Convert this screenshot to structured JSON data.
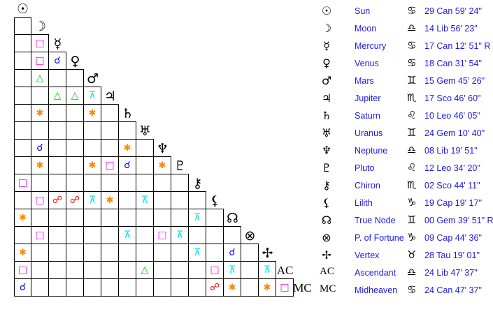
{
  "bodies": [
    {
      "name": "Sun",
      "glyph": "☉",
      "icon": "sun-icon",
      "sign": "♋",
      "sign_icon": "cancer-icon",
      "position": "29 Can 59' 24\""
    },
    {
      "name": "Moon",
      "glyph": "☽",
      "icon": "moon-icon",
      "sign": "♎",
      "sign_icon": "libra-icon",
      "position": "14 Lib 56' 23\""
    },
    {
      "name": "Mercury",
      "glyph": "☿",
      "icon": "mercury-icon",
      "sign": "♋",
      "sign_icon": "cancer-icon",
      "position": "17 Can 12' 51\" R"
    },
    {
      "name": "Venus",
      "glyph": "♀",
      "icon": "venus-icon",
      "sign": "♋",
      "sign_icon": "cancer-icon",
      "position": "18 Can 31' 54\""
    },
    {
      "name": "Mars",
      "glyph": "♂",
      "icon": "mars-icon",
      "sign": "♊",
      "sign_icon": "gemini-icon",
      "position": "15 Gem 45' 26\""
    },
    {
      "name": "Jupiter",
      "glyph": "♃",
      "icon": "jupiter-icon",
      "sign": "♏",
      "sign_icon": "scorpio-icon",
      "position": "17 Sco 46' 60\""
    },
    {
      "name": "Saturn",
      "glyph": "♄",
      "icon": "saturn-icon",
      "sign": "♌",
      "sign_icon": "leo-icon",
      "position": "10 Leo 46' 05\""
    },
    {
      "name": "Uranus",
      "glyph": "♅",
      "icon": "uranus-icon",
      "sign": "♊",
      "sign_icon": "gemini-icon",
      "position": "24 Gem 10' 40\""
    },
    {
      "name": "Neptune",
      "glyph": "♆",
      "icon": "neptune-icon",
      "sign": "♎",
      "sign_icon": "libra-icon",
      "position": "08 Lib 19' 51\""
    },
    {
      "name": "Pluto",
      "glyph": "♇",
      "icon": "pluto-icon",
      "sign": "♌",
      "sign_icon": "leo-icon",
      "position": "12 Leo 34' 20\""
    },
    {
      "name": "Chiron",
      "glyph": "⚷",
      "icon": "chiron-icon",
      "sign": "♏",
      "sign_icon": "scorpio-icon",
      "position": "02 Sco 44' 11\""
    },
    {
      "name": "Lilith",
      "glyph": "⚸",
      "icon": "lilith-icon",
      "sign": "♑",
      "sign_icon": "capricorn-icon",
      "position": "19 Cap 19' 17\""
    },
    {
      "name": "True Node",
      "glyph": "☊",
      "icon": "north-node-icon",
      "sign": "♊",
      "sign_icon": "gemini-icon",
      "position": "00 Gem 39' 51\" R"
    },
    {
      "name": "P. of Fortune",
      "glyph": "⊗",
      "icon": "part-of-fortune-icon",
      "sign": "♑",
      "sign_icon": "capricorn-icon",
      "position": "09 Cap 44' 36\""
    },
    {
      "name": "Vertex",
      "glyph": "✢",
      "icon": "vertex-icon",
      "sign": "♉",
      "sign_icon": "taurus-icon",
      "position": "28 Tau 19' 01\""
    },
    {
      "name": "Ascendant",
      "glyph": "AC",
      "icon": "ascendant-label",
      "sign": "♎",
      "sign_icon": "libra-icon",
      "position": "24 Lib 47' 37\""
    },
    {
      "name": "Midheaven",
      "glyph": "MC",
      "icon": "midheaven-label",
      "sign": "♋",
      "sign_icon": "cancer-icon",
      "position": "24 Can 47' 37\""
    }
  ],
  "aspect_types": {
    "conjunction": {
      "glyph": "☌",
      "color": "#0000ff"
    },
    "opposition": {
      "glyph": "☍",
      "color": "#ff0000"
    },
    "square": {
      "glyph": "□",
      "color": "#ff00ff"
    },
    "trine": {
      "glyph": "△",
      "color": "#00cc00"
    },
    "sextile": {
      "glyph": "✱",
      "color": "#ff8800"
    },
    "quincunx": {
      "glyph": "⊼",
      "color": "#00e5e5"
    }
  },
  "aspects": [
    {
      "a": "Mercury",
      "b": "Moon",
      "type": "square"
    },
    {
      "a": "Venus",
      "b": "Moon",
      "type": "square"
    },
    {
      "a": "Venus",
      "b": "Mercury",
      "type": "conjunction"
    },
    {
      "a": "Mars",
      "b": "Moon",
      "type": "trine"
    },
    {
      "a": "Jupiter",
      "b": "Mercury",
      "type": "trine"
    },
    {
      "a": "Jupiter",
      "b": "Venus",
      "type": "trine"
    },
    {
      "a": "Jupiter",
      "b": "Mars",
      "type": "quincunx"
    },
    {
      "a": "Saturn",
      "b": "Moon",
      "type": "sextile"
    },
    {
      "a": "Saturn",
      "b": "Mars",
      "type": "sextile"
    },
    {
      "a": "Neptune",
      "b": "Moon",
      "type": "conjunction"
    },
    {
      "a": "Neptune",
      "b": "Saturn",
      "type": "sextile"
    },
    {
      "a": "Pluto",
      "b": "Moon",
      "type": "sextile"
    },
    {
      "a": "Pluto",
      "b": "Mars",
      "type": "sextile"
    },
    {
      "a": "Pluto",
      "b": "Jupiter",
      "type": "square"
    },
    {
      "a": "Pluto",
      "b": "Saturn",
      "type": "conjunction"
    },
    {
      "a": "Pluto",
      "b": "Neptune",
      "type": "sextile"
    },
    {
      "a": "Chiron",
      "b": "Sun",
      "type": "square"
    },
    {
      "a": "Lilith",
      "b": "Moon",
      "type": "square"
    },
    {
      "a": "Lilith",
      "b": "Mercury",
      "type": "opposition"
    },
    {
      "a": "Lilith",
      "b": "Venus",
      "type": "opposition"
    },
    {
      "a": "Lilith",
      "b": "Mars",
      "type": "quincunx"
    },
    {
      "a": "Lilith",
      "b": "Jupiter",
      "type": "sextile"
    },
    {
      "a": "Lilith",
      "b": "Uranus",
      "type": "quincunx"
    },
    {
      "a": "True Node",
      "b": "Sun",
      "type": "sextile"
    },
    {
      "a": "True Node",
      "b": "Chiron",
      "type": "quincunx"
    },
    {
      "a": "P. of Fortune",
      "b": "Moon",
      "type": "square"
    },
    {
      "a": "P. of Fortune",
      "b": "Saturn",
      "type": "quincunx"
    },
    {
      "a": "P. of Fortune",
      "b": "Neptune",
      "type": "square"
    },
    {
      "a": "P. of Fortune",
      "b": "Pluto",
      "type": "quincunx"
    },
    {
      "a": "Vertex",
      "b": "Sun",
      "type": "sextile"
    },
    {
      "a": "Vertex",
      "b": "Chiron",
      "type": "quincunx"
    },
    {
      "a": "Vertex",
      "b": "True Node",
      "type": "conjunction"
    },
    {
      "a": "Ascendant",
      "b": "Sun",
      "type": "square"
    },
    {
      "a": "Ascendant",
      "b": "Uranus",
      "type": "trine"
    },
    {
      "a": "Ascendant",
      "b": "Lilith",
      "type": "square"
    },
    {
      "a": "Ascendant",
      "b": "True Node",
      "type": "quincunx"
    },
    {
      "a": "Ascendant",
      "b": "Vertex",
      "type": "quincunx"
    },
    {
      "a": "Midheaven",
      "b": "Sun",
      "type": "conjunction"
    },
    {
      "a": "Midheaven",
      "b": "Lilith",
      "type": "opposition"
    },
    {
      "a": "Midheaven",
      "b": "True Node",
      "type": "sextile"
    },
    {
      "a": "Midheaven",
      "b": "Vertex",
      "type": "sextile"
    },
    {
      "a": "Midheaven",
      "b": "Ascendant",
      "type": "square"
    }
  ]
}
